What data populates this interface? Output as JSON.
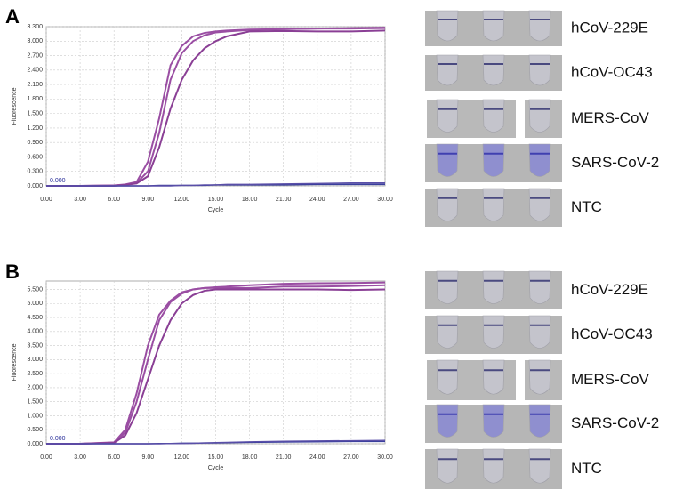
{
  "chart_data": [
    {
      "type": "line",
      "panel": "A",
      "xlabel": "Cycle",
      "ylabel": "Fluorescence",
      "annotation": "0.000",
      "x": [
        0,
        3,
        6,
        7,
        8,
        9,
        10,
        11,
        12,
        13,
        14,
        15,
        16,
        18,
        21,
        24,
        27,
        30
      ],
      "series": [
        {
          "color": "#9a4ea3",
          "values": [
            0,
            0,
            0.01,
            0.03,
            0.08,
            0.5,
            1.4,
            2.5,
            2.9,
            3.1,
            3.17,
            3.2,
            3.22,
            3.24,
            3.25,
            3.26,
            3.26,
            3.27
          ]
        },
        {
          "color": "#9a4ea3",
          "values": [
            0,
            0,
            0.01,
            0.02,
            0.06,
            0.3,
            1.1,
            2.2,
            2.75,
            3.0,
            3.12,
            3.18,
            3.2,
            3.23,
            3.25,
            3.26,
            3.27,
            3.28
          ]
        },
        {
          "color": "#8a3f95",
          "values": [
            0,
            0,
            0,
            0.02,
            0.05,
            0.2,
            0.8,
            1.6,
            2.2,
            2.6,
            2.85,
            3.0,
            3.1,
            3.2,
            3.21,
            3.2,
            3.2,
            3.22
          ]
        },
        {
          "color": "#3a3f9c",
          "values": [
            0,
            0,
            0,
            0,
            0,
            0,
            0.01,
            0.01,
            0.01,
            0.01,
            0.01,
            0.02,
            0.02,
            0.02,
            0.02,
            0.03,
            0.03,
            0.03
          ]
        },
        {
          "color": "#5a4fa8",
          "values": [
            0,
            0,
            0,
            0,
            0,
            0,
            0,
            0,
            0.01,
            0.01,
            0.02,
            0.02,
            0.03,
            0.03,
            0.04,
            0.05,
            0.06,
            0.06
          ]
        }
      ],
      "xlim": [
        0,
        30
      ],
      "xticks": [
        {
          "value": 0,
          "label": "0.00"
        },
        {
          "value": 3,
          "label": "3.00"
        },
        {
          "value": 6,
          "label": "6.00"
        },
        {
          "value": 9,
          "label": "9.00"
        },
        {
          "value": 12,
          "label": "12.00"
        },
        {
          "value": 15,
          "label": "15.00"
        },
        {
          "value": 18,
          "label": "18.00"
        },
        {
          "value": 21,
          "label": "21.00"
        },
        {
          "value": 24,
          "label": "24.00"
        },
        {
          "value": 27,
          "label": "27.00"
        },
        {
          "value": 30,
          "label": "30.00"
        }
      ],
      "ylim": [
        0,
        3.3
      ],
      "yticks": [
        {
          "value": 0,
          "label": "0.000"
        },
        {
          "value": 0.3,
          "label": "0.300"
        },
        {
          "value": 0.6,
          "label": "0.600"
        },
        {
          "value": 0.9,
          "label": "0.900"
        },
        {
          "value": 1.2,
          "label": "1.200"
        },
        {
          "value": 1.5,
          "label": "1.500"
        },
        {
          "value": 1.8,
          "label": "1.800"
        },
        {
          "value": 2.1,
          "label": "2.100"
        },
        {
          "value": 2.4,
          "label": "2.400"
        },
        {
          "value": 2.7,
          "label": "2.700"
        },
        {
          "value": 3.0,
          "label": "3.000"
        },
        {
          "value": 3.3,
          "label": "3.300"
        }
      ],
      "grid": true,
      "tube_labels": [
        "hCoV-229E",
        "hCoV-OC43",
        "MERS-CoV",
        "SARS-CoV-2",
        "NTC"
      ]
    },
    {
      "type": "line",
      "panel": "B",
      "xlabel": "Cycle",
      "ylabel": "Fluorescence",
      "annotation": "0.000",
      "x": [
        0,
        3,
        6,
        7,
        8,
        9,
        10,
        11,
        12,
        13,
        14,
        15,
        16,
        18,
        21,
        24,
        27,
        30
      ],
      "series": [
        {
          "color": "#9a4ea3",
          "values": [
            0,
            0,
            0.05,
            0.5,
            1.8,
            3.5,
            4.6,
            5.1,
            5.4,
            5.5,
            5.55,
            5.58,
            5.6,
            5.65,
            5.7,
            5.72,
            5.73,
            5.75
          ]
        },
        {
          "color": "#9a4ea3",
          "values": [
            0,
            0,
            0.04,
            0.4,
            1.5,
            3.0,
            4.4,
            5.05,
            5.35,
            5.5,
            5.55,
            5.55,
            5.55,
            5.55,
            5.6,
            5.6,
            5.62,
            5.65
          ]
        },
        {
          "color": "#8a3f95",
          "values": [
            0,
            0,
            0.03,
            0.3,
            1.1,
            2.3,
            3.5,
            4.4,
            5.0,
            5.3,
            5.45,
            5.5,
            5.5,
            5.5,
            5.5,
            5.5,
            5.48,
            5.5
          ]
        },
        {
          "color": "#3a3f9c",
          "values": [
            0,
            0,
            0,
            0,
            0,
            0,
            0.01,
            0.01,
            0.02,
            0.02,
            0.03,
            0.03,
            0.04,
            0.05,
            0.06,
            0.07,
            0.08,
            0.08
          ]
        },
        {
          "color": "#5a4fa8",
          "values": [
            0,
            0,
            0,
            0,
            0,
            0,
            0,
            0.01,
            0.01,
            0.02,
            0.03,
            0.04,
            0.05,
            0.07,
            0.09,
            0.1,
            0.11,
            0.12
          ]
        }
      ],
      "xlim": [
        0,
        30
      ],
      "xticks": [
        {
          "value": 0,
          "label": "0.00"
        },
        {
          "value": 3,
          "label": "3.00"
        },
        {
          "value": 6,
          "label": "6.00"
        },
        {
          "value": 9,
          "label": "9.00"
        },
        {
          "value": 12,
          "label": "12.00"
        },
        {
          "value": 15,
          "label": "15.00"
        },
        {
          "value": 18,
          "label": "18.00"
        },
        {
          "value": 21,
          "label": "21.00"
        },
        {
          "value": 24,
          "label": "24.00"
        },
        {
          "value": 27,
          "label": "27.00"
        },
        {
          "value": 30,
          "label": "30.00"
        }
      ],
      "ylim": [
        0,
        5.8
      ],
      "yticks": [
        {
          "value": 0,
          "label": "0.000"
        },
        {
          "value": 0.5,
          "label": "0.500"
        },
        {
          "value": 1.0,
          "label": "1.000"
        },
        {
          "value": 1.5,
          "label": "1.500"
        },
        {
          "value": 2.0,
          "label": "2.000"
        },
        {
          "value": 2.5,
          "label": "2.500"
        },
        {
          "value": 3.0,
          "label": "3.000"
        },
        {
          "value": 3.5,
          "label": "3.500"
        },
        {
          "value": 4.0,
          "label": "4.000"
        },
        {
          "value": 4.5,
          "label": "4.500"
        },
        {
          "value": 5.0,
          "label": "5.000"
        },
        {
          "value": 5.5,
          "label": "5.500"
        }
      ],
      "grid": true,
      "tube_labels": [
        "hCoV-229E",
        "hCoV-OC43",
        "MERS-CoV",
        "SARS-CoV-2",
        "NTC"
      ]
    }
  ]
}
